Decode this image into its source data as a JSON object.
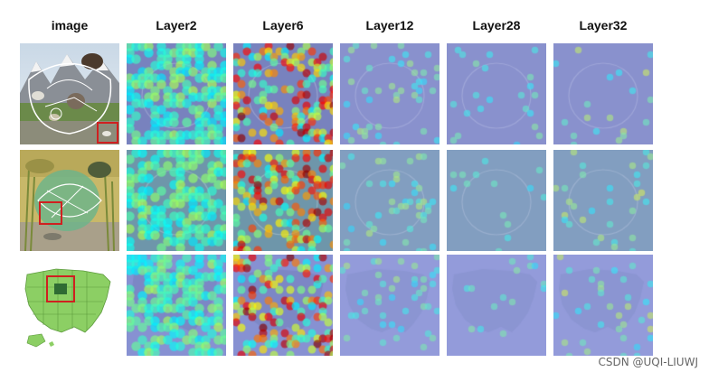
{
  "headers": [
    "image",
    "Layer2",
    "Layer6",
    "Layer12",
    "Layer28",
    "Layer32"
  ],
  "rows": [
    {
      "subject": "food web diagram with bear and deer"
    },
    {
      "subject": "aquatic food web diagram with fish"
    },
    {
      "subject": "map of the United States"
    }
  ],
  "watermark": "CSDN @UQI-LIUWJ"
}
